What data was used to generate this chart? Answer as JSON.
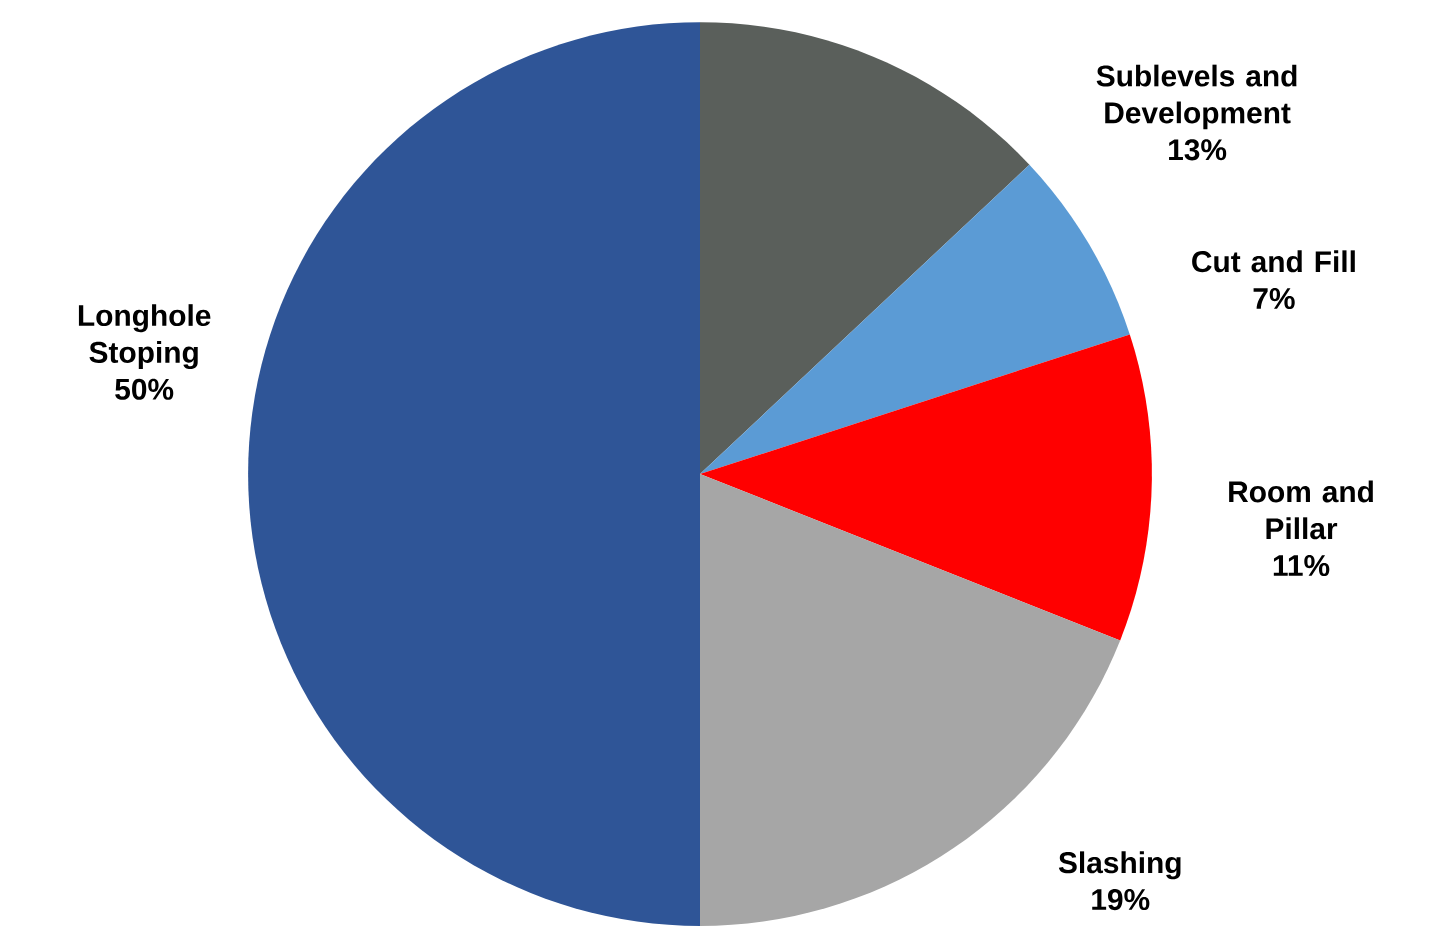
{
  "chart_data": {
    "type": "pie",
    "categories": [
      "Sublevels and Development",
      "Cut and Fill",
      "Room and Pillar",
      "Slashing",
      "Longhole Stoping"
    ],
    "values": [
      13,
      7,
      11,
      19,
      50
    ],
    "value_labels": [
      "13%",
      "7%",
      "11%",
      "19%",
      "50%"
    ],
    "colors": [
      "#5a5f5b",
      "#5b9bd5",
      "#ff0000",
      "#a6a6a6",
      "#2f5597"
    ]
  }
}
